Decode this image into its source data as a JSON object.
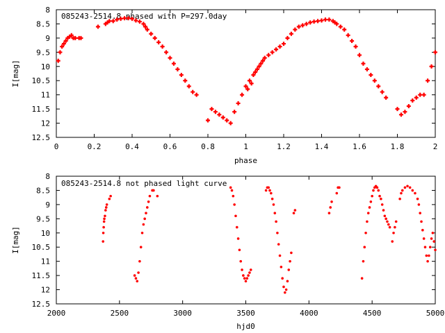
{
  "chart_data": [
    {
      "type": "scatter",
      "title": "085243-2514.8 phased with P=297.0day",
      "xlabel": "phase",
      "ylabel": "I[mag]",
      "xlim": [
        0,
        2
      ],
      "ylim": [
        8,
        12.5
      ],
      "y_inverted": true,
      "grid": false,
      "legend": "none",
      "color": "#ff0000",
      "x_ticks": [
        "0",
        "0.2",
        "0.4",
        "0.6",
        "0.8",
        "1",
        "1.2",
        "1.4",
        "1.6",
        "1.8",
        "2"
      ],
      "y_ticks": [
        "8",
        "8.5",
        "9",
        "9.5",
        "10",
        "10.5",
        "11",
        "11.5",
        "12",
        "12.5"
      ],
      "series": [
        {
          "x": [
            0.01,
            0.02,
            0.03,
            0.04,
            0.05,
            0.06,
            0.07,
            0.08,
            0.09,
            0.1,
            0.12,
            0.13,
            0.22,
            0.26,
            0.27,
            0.28,
            0.3,
            0.32,
            0.34,
            0.36,
            0.38,
            0.4,
            0.42,
            0.44,
            0.46,
            0.47,
            0.48,
            0.5,
            0.52,
            0.54,
            0.56,
            0.58,
            0.6,
            0.62,
            0.64,
            0.66,
            0.68,
            0.7,
            0.72,
            0.74,
            0.8,
            0.82,
            0.84,
            0.86,
            0.88,
            0.9,
            0.92,
            0.94,
            0.96,
            0.98,
            1.0,
            1.01,
            1.02,
            1.03,
            1.04,
            1.05,
            1.06,
            1.07,
            1.08,
            1.09,
            1.1,
            1.12,
            1.14,
            1.16,
            1.18,
            1.2,
            1.22,
            1.24,
            1.26,
            1.28,
            1.3,
            1.32,
            1.34,
            1.36,
            1.38,
            1.4,
            1.42,
            1.44,
            1.46,
            1.47,
            1.48,
            1.5,
            1.52,
            1.54,
            1.56,
            1.58,
            1.6,
            1.62,
            1.64,
            1.66,
            1.68,
            1.7,
            1.72,
            1.74,
            1.8,
            1.82,
            1.84,
            1.86,
            1.88,
            1.9,
            1.92,
            1.94,
            1.96,
            1.98,
            2.0
          ],
          "y": [
            9.8,
            9.5,
            9.3,
            9.2,
            9.1,
            9.0,
            8.95,
            8.9,
            9.0,
            9.0,
            9.0,
            9.0,
            8.6,
            8.5,
            8.45,
            8.4,
            8.4,
            8.35,
            8.32,
            8.3,
            8.3,
            8.32,
            8.38,
            8.42,
            8.5,
            8.6,
            8.7,
            8.85,
            9.0,
            9.15,
            9.3,
            9.5,
            9.7,
            9.9,
            10.1,
            10.3,
            10.5,
            10.7,
            10.9,
            11.0,
            11.9,
            11.5,
            11.6,
            11.7,
            11.8,
            11.9,
            12.0,
            11.6,
            11.3,
            11.0,
            10.7,
            10.8,
            10.5,
            10.6,
            10.3,
            10.2,
            10.1,
            10.0,
            9.9,
            9.8,
            9.7,
            9.6,
            9.5,
            9.4,
            9.3,
            9.2,
            9.0,
            8.85,
            8.7,
            8.6,
            8.55,
            8.5,
            8.45,
            8.42,
            8.4,
            8.38,
            8.35,
            8.35,
            8.4,
            8.45,
            8.5,
            8.6,
            8.7,
            8.9,
            9.1,
            9.3,
            9.6,
            9.9,
            10.1,
            10.3,
            10.5,
            10.7,
            10.9,
            11.1,
            11.5,
            11.7,
            11.6,
            11.4,
            11.2,
            11.1,
            11.0,
            11.0,
            10.5,
            10.0,
            9.5
          ]
        }
      ]
    },
    {
      "type": "scatter",
      "title": "085243-2514.8 not phased light curve",
      "xlabel": "hjd0",
      "ylabel": "I[mag]",
      "xlim": [
        2000,
        5000
      ],
      "ylim": [
        8,
        12.5
      ],
      "y_inverted": true,
      "grid": false,
      "legend": "none",
      "color": "#ff0000",
      "x_ticks": [
        "2000",
        "2500",
        "3000",
        "3500",
        "4000",
        "4500",
        "5000"
      ],
      "y_ticks": [
        "8",
        "8.5",
        "9",
        "9.5",
        "10",
        "10.5",
        "11",
        "11.5",
        "12",
        "12.5"
      ],
      "series": [
        {
          "x": [
            2370,
            2372,
            2375,
            2378,
            2380,
            2385,
            2390,
            2395,
            2400,
            2420,
            2430,
            2620,
            2630,
            2640,
            2650,
            2660,
            2670,
            2680,
            2690,
            2700,
            2710,
            2720,
            2730,
            2740,
            2760,
            2770,
            2800,
            3380,
            3390,
            3400,
            3410,
            3420,
            3430,
            3440,
            3450,
            3460,
            3470,
            3480,
            3490,
            3500,
            3510,
            3520,
            3530,
            3540,
            3660,
            3670,
            3680,
            3690,
            3700,
            3710,
            3720,
            3730,
            3740,
            3750,
            3760,
            3770,
            3780,
            3790,
            3800,
            3810,
            3820,
            3830,
            3840,
            3850,
            3860,
            3880,
            3890,
            4160,
            4170,
            4180,
            4220,
            4230,
            4240,
            4420,
            4430,
            4440,
            4450,
            4460,
            4470,
            4480,
            4490,
            4500,
            4510,
            4520,
            4530,
            4540,
            4550,
            4560,
            4570,
            4580,
            4590,
            4600,
            4610,
            4620,
            4630,
            4640,
            4660,
            4670,
            4680,
            4690,
            4720,
            4730,
            4740,
            4760,
            4780,
            4800,
            4820,
            4840,
            4860,
            4870,
            4880,
            4890,
            4900,
            4910,
            4920,
            4930,
            4940,
            4950,
            4960,
            4970,
            4980,
            4990,
            5000
          ],
          "y": [
            10.3,
            10.0,
            9.8,
            9.6,
            9.5,
            9.4,
            9.2,
            9.1,
            9.0,
            8.8,
            8.7,
            11.5,
            11.6,
            11.7,
            11.4,
            11.0,
            10.5,
            10.0,
            9.7,
            9.5,
            9.3,
            9.1,
            8.9,
            8.7,
            8.5,
            8.5,
            8.7,
            8.4,
            8.5,
            8.7,
            9.0,
            9.4,
            9.8,
            10.2,
            10.6,
            11.0,
            11.3,
            11.5,
            11.6,
            11.7,
            11.6,
            11.5,
            11.4,
            11.3,
            8.5,
            8.4,
            8.4,
            8.5,
            8.6,
            8.8,
            9.0,
            9.3,
            9.6,
            10.0,
            10.4,
            10.8,
            11.2,
            11.6,
            11.9,
            12.1,
            12.0,
            11.7,
            11.3,
            11.0,
            10.7,
            9.3,
            9.2,
            9.3,
            9.1,
            8.9,
            8.6,
            8.4,
            8.4,
            11.6,
            11.0,
            10.5,
            10.0,
            9.6,
            9.3,
            9.1,
            8.9,
            8.7,
            8.5,
            8.4,
            8.35,
            8.4,
            8.5,
            8.7,
            8.8,
            9.0,
            9.2,
            9.4,
            9.5,
            9.6,
            9.7,
            9.8,
            10.3,
            10.0,
            9.8,
            9.6,
            8.8,
            8.6,
            8.5,
            8.4,
            8.35,
            8.4,
            8.5,
            8.6,
            8.8,
            9.0,
            9.3,
            9.6,
            9.9,
            10.2,
            10.5,
            10.8,
            11.0,
            10.8,
            10.5,
            10.2,
            10.0,
            10.3,
            10.6
          ]
        }
      ]
    }
  ]
}
